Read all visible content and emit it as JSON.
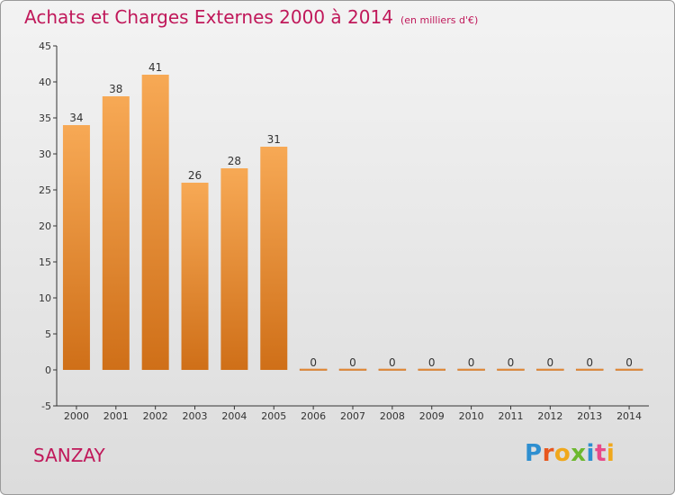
{
  "title": "Achats et Charges Externes 2000 à 2014",
  "unit": "(en milliers d'€)",
  "commune": "SANZAY",
  "logo": {
    "letters": [
      "P",
      "r",
      "o",
      "x",
      "i",
      "t",
      "i"
    ],
    "colors": [
      "#2e8fd0",
      "#e8571e",
      "#f0a81c",
      "#6cb82e",
      "#2e8fd0",
      "#e84a8a",
      "#f0a81c"
    ]
  },
  "colors": {
    "bar_top": "#f7a955",
    "bar_bottom": "#cf6f18",
    "title": "#c0185a"
  },
  "chart_data": {
    "type": "bar",
    "categories": [
      "2000",
      "2001",
      "2002",
      "2003",
      "2004",
      "2005",
      "2006",
      "2007",
      "2008",
      "2009",
      "2010",
      "2011",
      "2012",
      "2013",
      "2014"
    ],
    "values": [
      34,
      38,
      41,
      26,
      28,
      31,
      0,
      0,
      0,
      0,
      0,
      0,
      0,
      0,
      0
    ],
    "ylim": [
      -5,
      45
    ],
    "yticks": [
      -5,
      0,
      5,
      10,
      15,
      20,
      25,
      30,
      35,
      40,
      45
    ],
    "grid": false,
    "data_labels": true
  }
}
